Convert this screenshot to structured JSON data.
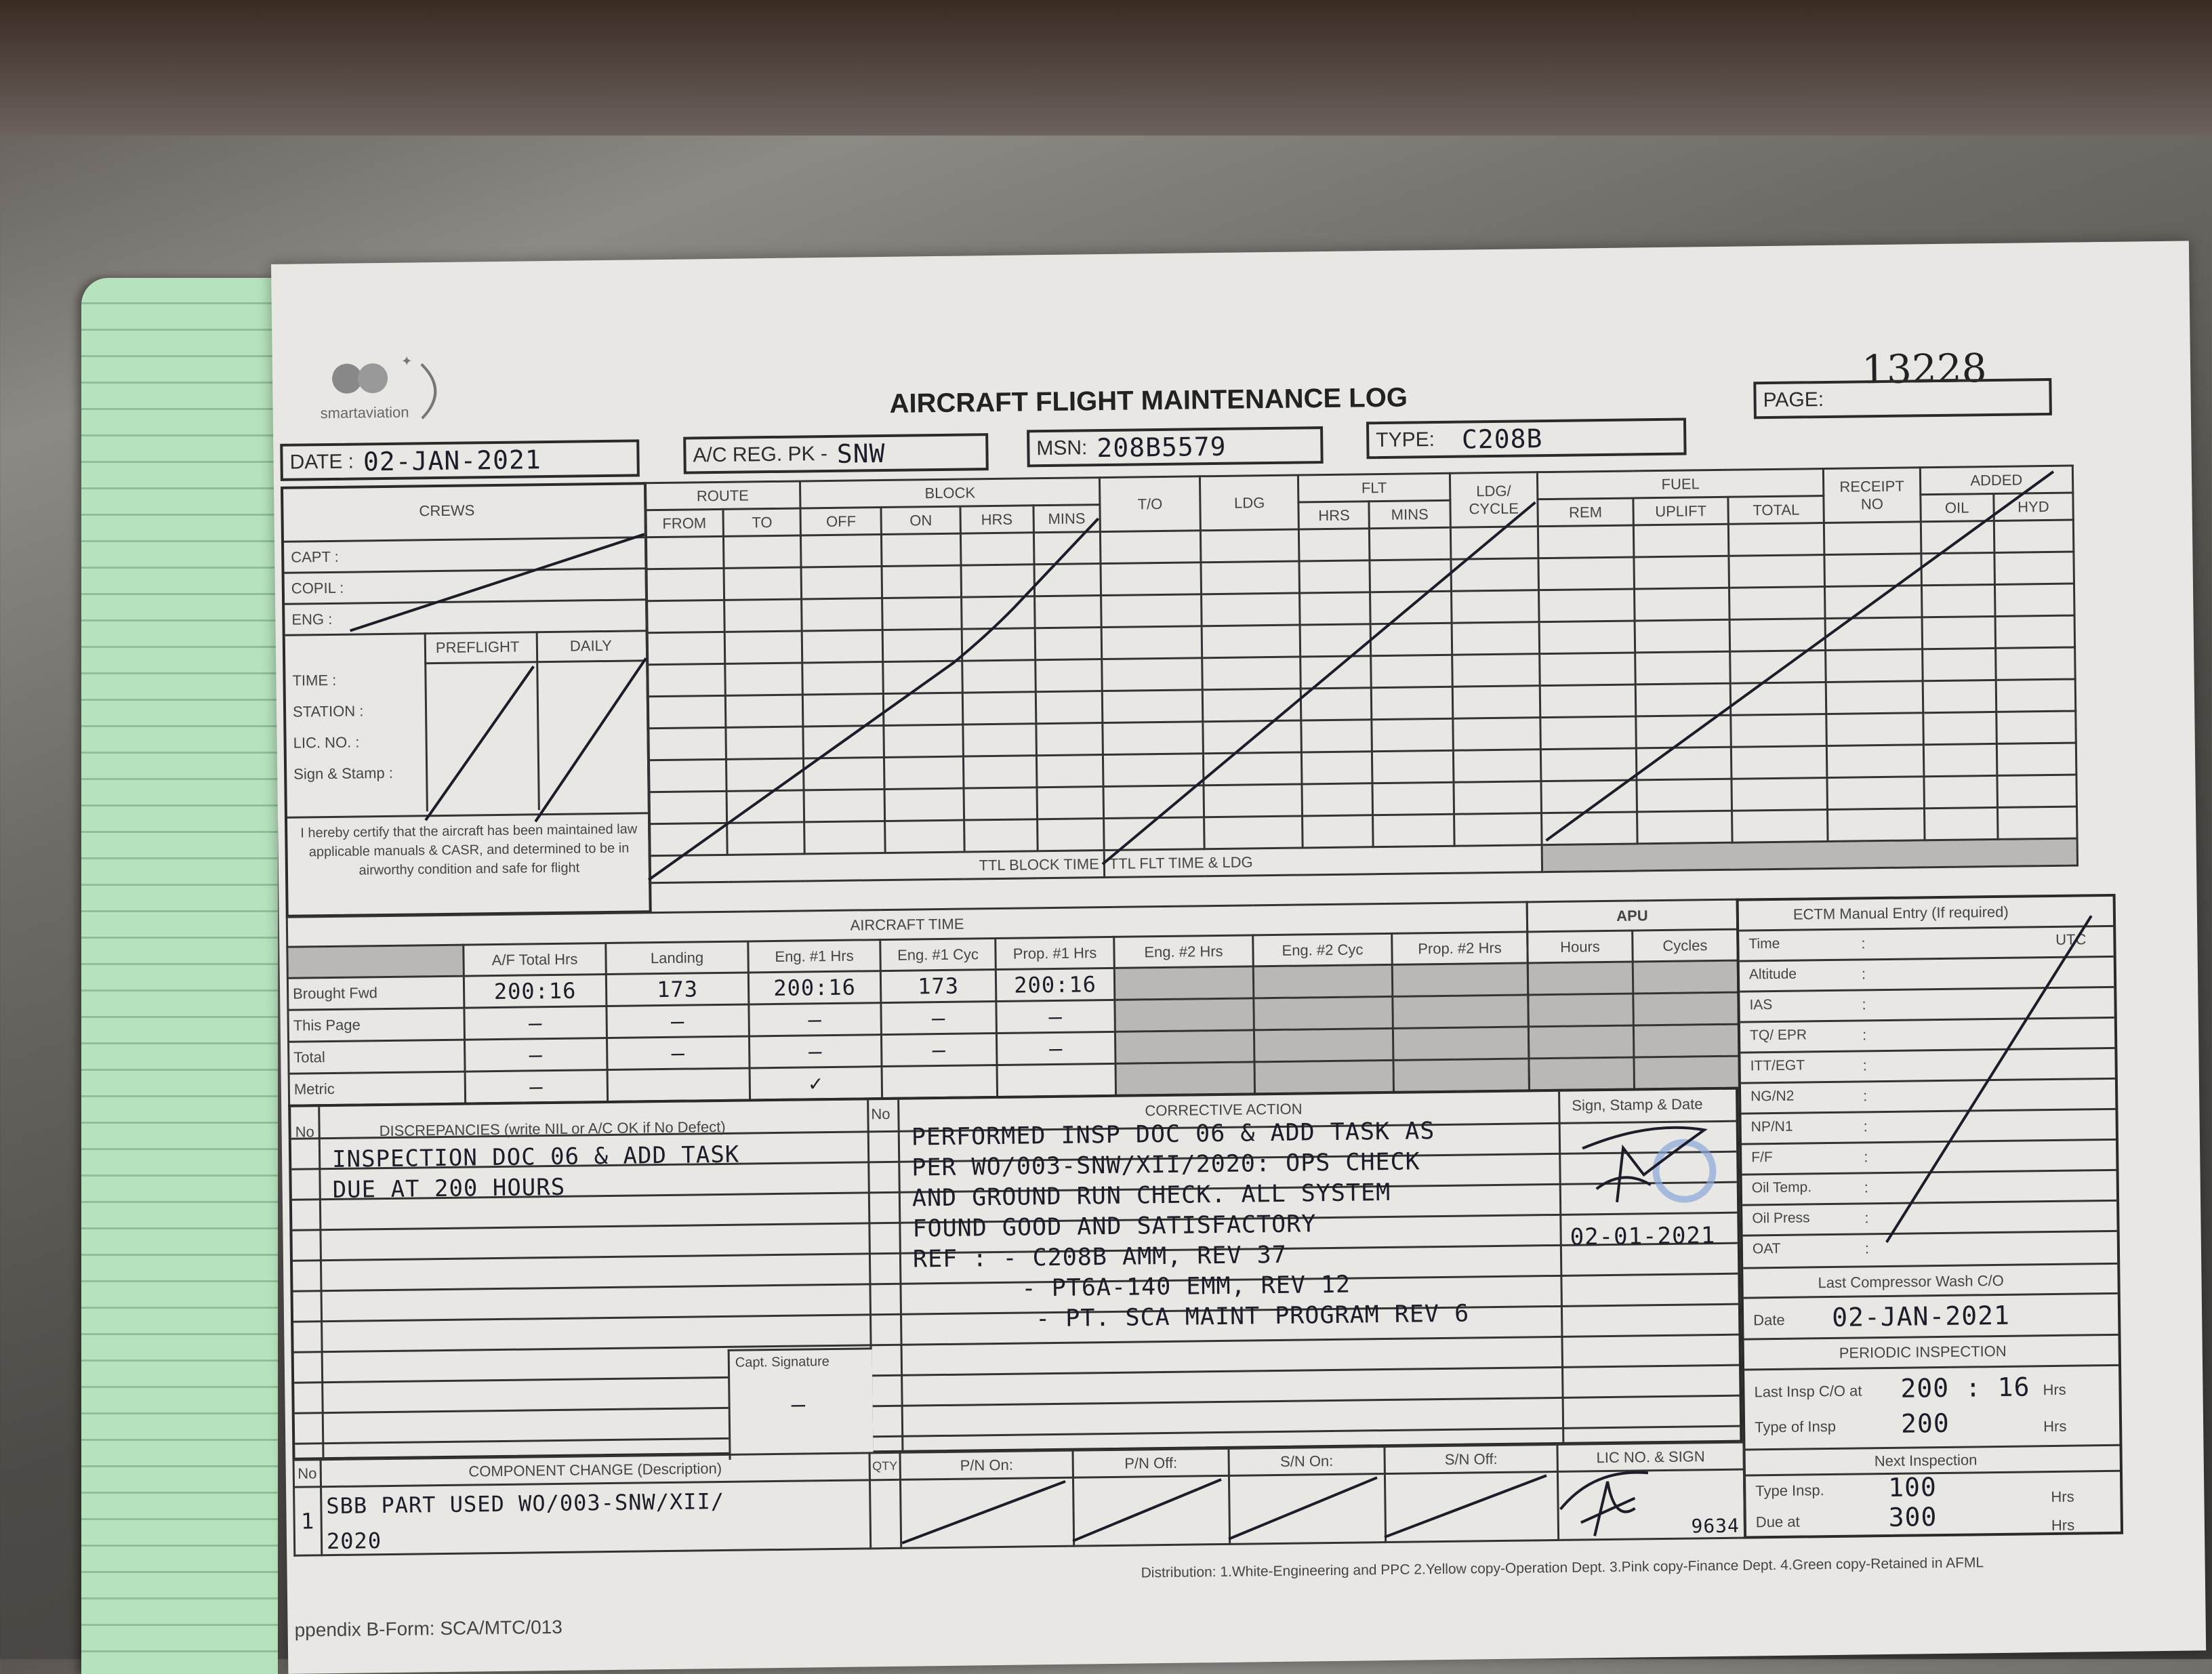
{
  "form": {
    "logo_text": "smartaviation",
    "title": "AIRCRAFT FLIGHT MAINTENANCE LOG",
    "serial_number": "13228",
    "date_label": "DATE :",
    "date_value": "02-JAN-2021",
    "reg_label": "A/C REG. PK -",
    "reg_value": "SNW",
    "msn_label": "MSN:",
    "msn_value": "208B5579",
    "type_label": "TYPE:",
    "type_value": "C208B",
    "page_label": "PAGE:"
  },
  "crews": {
    "header": "CREWS",
    "capt": "CAPT :",
    "copil": "COPIL :",
    "eng": "ENG :",
    "preflight": "PREFLIGHT",
    "daily": "DAILY",
    "time": "TIME :",
    "station": "STATION :",
    "lic_no": "LIC. NO. :",
    "sign_stamp": "Sign & Stamp :",
    "certify": "I hereby certify that the aircraft has been maintained law applicable manuals & CASR, and determined to be in airworthy condition and safe for flight"
  },
  "flight_grid": {
    "route": "ROUTE",
    "from": "FROM",
    "to": "TO",
    "block": "BLOCK",
    "off": "OFF",
    "on": "ON",
    "hrs": "HRS",
    "mins": "MINS",
    "t_o": "T/O",
    "ldg": "LDG",
    "flt": "FLT",
    "flt_hrs": "HRS",
    "flt_mins": "MINS",
    "ldg_cycle": "LDG/ CYCLE",
    "fuel": "FUEL",
    "rem": "REM",
    "uplift": "UPLIFT",
    "total": "TOTAL",
    "receipt": "RECEIPT NO",
    "added": "ADDED",
    "oil": "OIL",
    "hyd": "HYD",
    "ttl_block": "TTL BLOCK TIME",
    "ttl_flt": "TTL FLT TIME & LDG"
  },
  "aircraft_time": {
    "header": "AIRCRAFT TIME",
    "columns": [
      "A/F Total Hrs",
      "Landing",
      "Eng. #1 Hrs",
      "Eng. #1 Cyc",
      "Prop. #1 Hrs",
      "Eng. #2 Hrs",
      "Eng. #2 Cyc",
      "Prop. #2 Hrs"
    ],
    "rows": [
      {
        "label": "Brought Fwd",
        "values": [
          "200:16",
          "173",
          "200:16",
          "173",
          "200:16",
          "",
          "",
          ""
        ]
      },
      {
        "label": "This Page",
        "values": [
          "—",
          "—",
          "—",
          "—",
          "—",
          "",
          "",
          ""
        ]
      },
      {
        "label": "Total",
        "values": [
          "—",
          "—",
          "—",
          "—",
          "—",
          "",
          "",
          ""
        ]
      },
      {
        "label": "Metric",
        "values": [
          "—",
          "",
          "✓",
          "",
          "",
          "",
          "",
          ""
        ]
      }
    ]
  },
  "apu": {
    "header": "APU",
    "hours": "Hours",
    "cycles": "Cycles"
  },
  "ectm": {
    "header": "ECTM Manual Entry (If required)",
    "utc": "UTC",
    "rows": [
      "Time",
      "Altitude",
      "IAS",
      "TQ/ EPR",
      "ITT/EGT",
      "NG/N2",
      "NP/N1",
      "F/F",
      "Oil Temp.",
      "Oil Press",
      "OAT"
    ]
  },
  "compressor_wash": {
    "header": "Last Compressor Wash C/O",
    "date_label": "Date",
    "date_value": "02-JAN-2021"
  },
  "periodic": {
    "header": "PERIODIC INSPECTION",
    "last_label": "Last Insp C/O at",
    "last_value": "200 : 16",
    "type_label": "Type of Insp",
    "type_value": "200",
    "next_header": "Next Inspection",
    "next_type_label": "Type Insp.",
    "next_type_value": "100",
    "due_label": "Due at",
    "due_value": "300",
    "unit": "Hrs"
  },
  "discrepancies": {
    "no_label": "No",
    "header": "DISCREPANCIES (write NIL or A/C OK if No Defect)",
    "lines": [
      "INSPECTION DOC 06 & ADD TASK",
      "DUE AT 200 HOURS"
    ],
    "capt_signature_label": "Capt. Signature",
    "capt_signature_value": "—"
  },
  "corrective": {
    "no_label": "No",
    "header": "CORRECTIVE ACTION",
    "lines": [
      "PERFORMED INSP DOC 06 & ADD TASK AS",
      "PER WO/003-SNW/XII/2020: OPS CHECK",
      "AND GROUND RUN CHECK. ALL SYSTEM",
      "FOUND GOOD AND SATISFACTORY",
      "REF : - C208B AMM, REV 37",
      "- PT6A-140 EMM, REV 12",
      "- PT. SCA MAINT PROGRAM REV 6"
    ],
    "sign_header": "Sign, Stamp & Date",
    "sign_date": "02-01-2021"
  },
  "component_change": {
    "no_label": "No",
    "header": "COMPONENT CHANGE (Description)",
    "qty": "QTY",
    "pn_on": "P/N On:",
    "pn_off": "P/N Off:",
    "sn_on": "S/N On:",
    "sn_off": "S/N Off:",
    "lic_sign": "LIC NO. & SIGN",
    "entry_no": "1",
    "entry_lines": [
      "SBB PART USED WO/003-SNW/XII/",
      "2020"
    ],
    "lic_no": "9634"
  },
  "footer": {
    "distribution": "Distribution: 1.White-Engineering and PPC  2.Yellow copy-Operation Dept.  3.Pink copy-Finance Dept.  4.Green copy-Retained in AFML",
    "form_ref": "ppendix B-Form: SCA/MTC/013"
  },
  "colors": {
    "paper": "#e8e7e4",
    "ink": "#1d1d2a",
    "stamp": "#7f9fd6",
    "notebook": "#b6e2bd"
  }
}
